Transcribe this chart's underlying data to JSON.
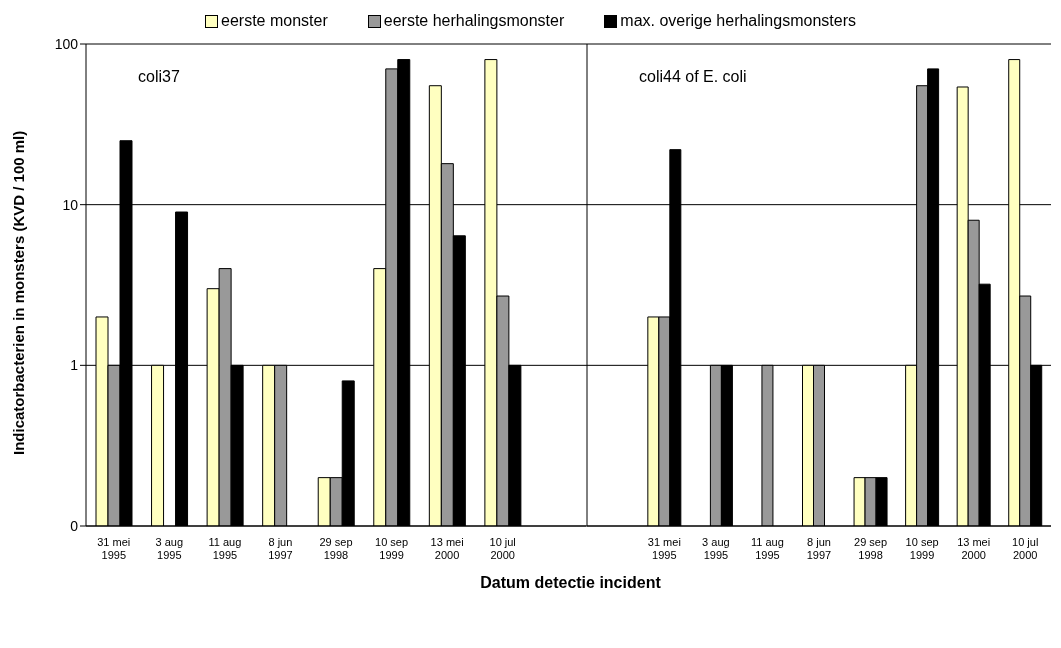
{
  "chart_data": [
    {
      "type": "bar",
      "ylabel": "Indicatorbacterien in monsters (KVD / 100 ml)",
      "xlabel": "Datum detectie incident",
      "annotations": [
        "coli37"
      ],
      "categories": [
        "31 mei 1995",
        "3 aug 1995",
        "11 aug 1995",
        "8 jun 1997",
        "29 sep 1998",
        "10 sep 1999",
        "13 mei 2000",
        "10 jul 2000",
        null
      ],
      "series": [
        {
          "name": "eerste monster",
          "color": "#ffffc0",
          "values": [
            2,
            1,
            3,
            1,
            0.2,
            4,
            55,
            80,
            null
          ]
        },
        {
          "name": "eerste herhalingsmonster",
          "color": "#999999",
          "values": [
            1,
            null,
            4,
            1,
            0.2,
            70,
            18,
            2.7,
            null
          ]
        },
        {
          "name": "max. overige herhalingsmonsters",
          "color": "#000000",
          "values": [
            25,
            9,
            1,
            null,
            0.8,
            80,
            6.4,
            1,
            null
          ]
        }
      ],
      "log": true,
      "ylim": [
        0.1,
        100
      ],
      "yticks": [
        {
          "value": 0.1,
          "label": "0"
        },
        1,
        10,
        100
      ],
      "grid": "y",
      "legend": "top"
    },
    {
      "type": "bar",
      "annotations": [
        "coli44 of E. coli"
      ],
      "categories": [
        null,
        "31 mei 1995",
        "3 aug 1995",
        "11 aug 1995",
        "8 jun 1997",
        "29 sep 1998",
        "10 sep 1999",
        "13 mei 2000",
        "10 jul 2000"
      ],
      "series": [
        {
          "color": "#ffffc0",
          "values": [
            null,
            2,
            null,
            null,
            1,
            0.2,
            1,
            54,
            80
          ]
        },
        {
          "color": "#999999",
          "values": [
            null,
            2,
            1,
            1,
            1,
            0.2,
            55,
            8,
            2.7
          ]
        },
        {
          "color": "#000000",
          "values": [
            null,
            22,
            1,
            null,
            null,
            0.2,
            70,
            3.2,
            1
          ]
        }
      ],
      "log": true,
      "ylim": [
        0.1,
        100
      ],
      "yticks": [
        {
          "value": 0.1,
          "label": null
        },
        {
          "value": 1,
          "label": null
        },
        {
          "value": 10,
          "label": null
        },
        {
          "value": 100,
          "label": null
        }
      ],
      "grid": "y",
      "tick_labels": "x"
    }
  ]
}
